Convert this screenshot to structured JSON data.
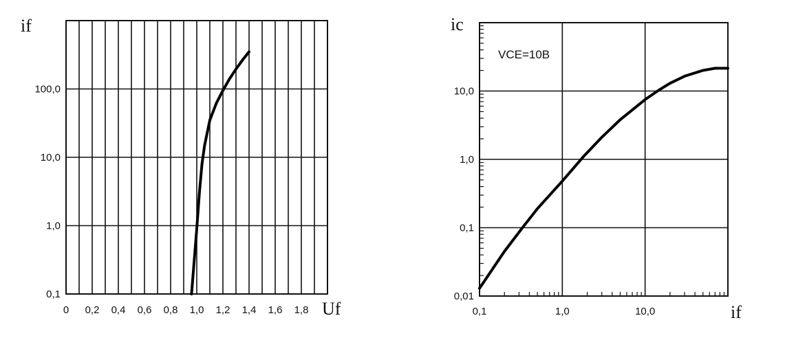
{
  "chart_data": [
    {
      "type": "line",
      "xlabel": "Uf",
      "ylabel": "if",
      "xscale": "linear",
      "yscale": "log",
      "xlim": [
        0,
        2.0
      ],
      "ylim": [
        0.1,
        1000
      ],
      "x_ticks": [
        0,
        0.2,
        0.4,
        0.6,
        0.8,
        1.0,
        1.2,
        1.4,
        1.6,
        1.8
      ],
      "x_tick_labels": [
        "0",
        "0,2",
        "0,4",
        "0,6",
        "0,8",
        "1,0",
        "1,2",
        "1,4",
        "1,6",
        "1,8"
      ],
      "y_ticks": [
        0.1,
        1,
        10,
        100
      ],
      "y_tick_labels": [
        "0,1",
        "1,0",
        "10,0",
        "100,0"
      ],
      "grid": true,
      "series": [
        {
          "x": [
            0.96,
            0.98,
            1.0,
            1.02,
            1.04,
            1.06,
            1.1,
            1.15,
            1.2,
            1.25,
            1.3,
            1.35,
            1.4
          ],
          "y": [
            0.1,
            0.3,
            0.9,
            3,
            8,
            15,
            35,
            62,
            95,
            140,
            195,
            265,
            350
          ]
        }
      ]
    },
    {
      "type": "line",
      "xlabel": "if",
      "ylabel": "ic",
      "xscale": "log",
      "yscale": "log",
      "xlim": [
        0.1,
        100
      ],
      "ylim": [
        0.01,
        100
      ],
      "x_ticks": [
        0.1,
        1,
        10
      ],
      "x_tick_labels": [
        "0,1",
        "1,0",
        "10,0"
      ],
      "y_ticks": [
        0.01,
        0.1,
        1,
        10
      ],
      "y_tick_labels": [
        "0,01",
        "0,1",
        "1,0",
        "10,0"
      ],
      "annotation": "VCE=10B",
      "grid": true,
      "series": [
        {
          "x": [
            0.1,
            0.2,
            0.33,
            0.5,
            1.0,
            1.8,
            3,
            5,
            10,
            15,
            20,
            30,
            50,
            70,
            100
          ],
          "y": [
            0.013,
            0.045,
            0.1,
            0.19,
            0.48,
            1.1,
            2.1,
            3.8,
            7.5,
            10.5,
            13,
            16.5,
            20,
            21.5,
            21.5
          ]
        }
      ]
    }
  ]
}
